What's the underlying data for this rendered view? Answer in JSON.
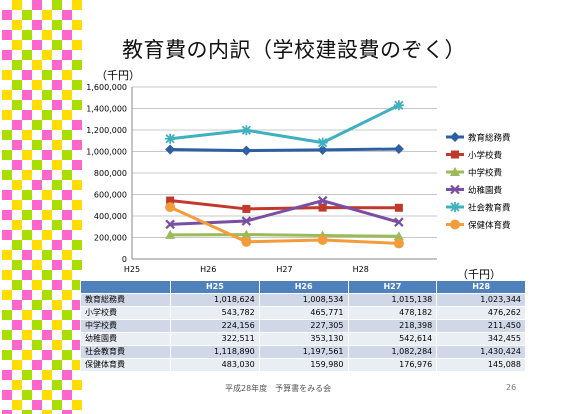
{
  "title": "教育費の内訳（学校建設費のぞく）",
  "unit_top": "（千円）",
  "unit_right": "（千円）",
  "footer": "平成28年度　予算書をみる会",
  "page_number": "26",
  "colors": {
    "deco": [
      "#ff66cc",
      "#ffdd00",
      "#aadd00",
      "#ffffff"
    ]
  },
  "chart_data": {
    "type": "line",
    "categories": [
      "H25",
      "H26",
      "H27",
      "H28"
    ],
    "ylim": [
      0,
      1600000
    ],
    "yticks": [
      "0",
      "200,000",
      "400,000",
      "600,000",
      "800,000",
      "1,000,000",
      "1,200,000",
      "1,400,000",
      "1,600,000"
    ],
    "grid": true,
    "legend_position": "right",
    "series": [
      {
        "name": "教育総務費",
        "color": "#2e5fa3",
        "marker": "diamond",
        "values": [
          1018624,
          1008534,
          1015138,
          1023344
        ]
      },
      {
        "name": "小学校費",
        "color": "#c0392b",
        "marker": "square",
        "values": [
          543782,
          465771,
          478182,
          476262
        ]
      },
      {
        "name": "中学校費",
        "color": "#9bbb59",
        "marker": "triangle",
        "values": [
          224156,
          227305,
          218398,
          211450
        ]
      },
      {
        "name": "幼稚園費",
        "color": "#7a4ea3",
        "marker": "x",
        "values": [
          322511,
          353130,
          542614,
          342455
        ]
      },
      {
        "name": "社会教育費",
        "color": "#3fb0c0",
        "marker": "star",
        "values": [
          1118890,
          1197561,
          1082284,
          1430424
        ]
      },
      {
        "name": "保健体育費",
        "color": "#f39c3c",
        "marker": "circle",
        "values": [
          483030,
          159980,
          176976,
          145088
        ]
      }
    ]
  },
  "table": {
    "headers": [
      "H25",
      "H26",
      "H27",
      "H28"
    ],
    "rows": [
      {
        "label": "教育総務費",
        "values": [
          "1,018,624",
          "1,008,534",
          "1,015,138",
          "1,023,344"
        ]
      },
      {
        "label": "小学校費",
        "values": [
          "543,782",
          "465,771",
          "478,182",
          "476,262"
        ]
      },
      {
        "label": "中学校費",
        "values": [
          "224,156",
          "227,305",
          "218,398",
          "211,450"
        ]
      },
      {
        "label": "幼稚園費",
        "values": [
          "322,511",
          "353,130",
          "542,614",
          "342,455"
        ]
      },
      {
        "label": "社会教育費",
        "values": [
          "1,118,890",
          "1,197,561",
          "1,082,284",
          "1,430,424"
        ]
      },
      {
        "label": "保健体育費",
        "values": [
          "483,030",
          "159,980",
          "176,976",
          "145,088"
        ]
      }
    ]
  }
}
